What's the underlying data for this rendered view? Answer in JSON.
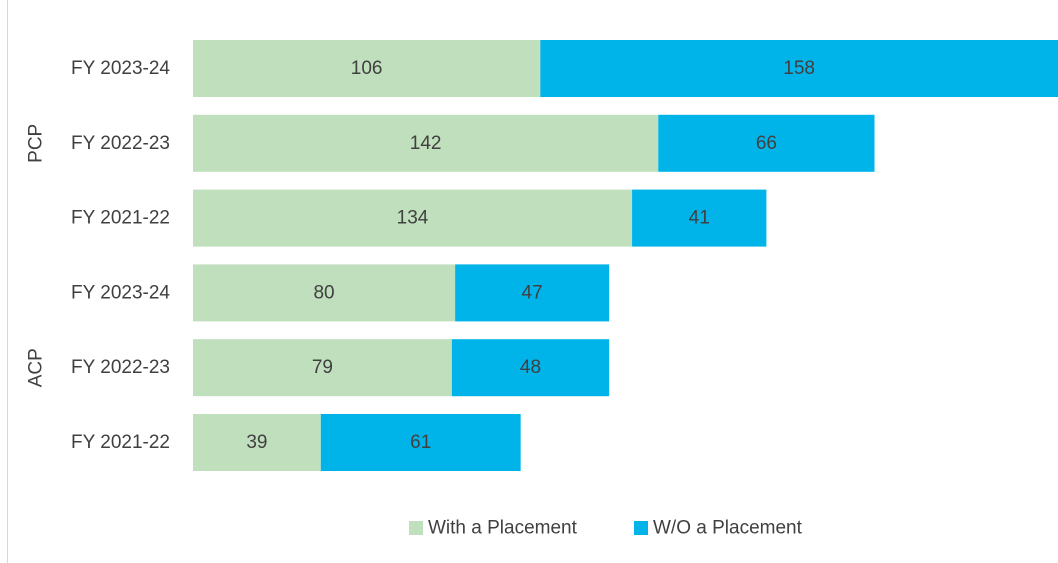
{
  "chart_data": {
    "type": "bar",
    "orientation": "horizontal",
    "stacked": true,
    "title": "",
    "xlabel": "",
    "ylabel": "",
    "groups": [
      {
        "label": "PCP",
        "categories": [
          "FY 2023-24",
          "FY 2022-23",
          "FY 2021-22"
        ],
        "with_placement": [
          106,
          142,
          134
        ],
        "without_placement": [
          158,
          66,
          41
        ]
      },
      {
        "label": "ACP",
        "categories": [
          "FY 2023-24",
          "FY 2022-23",
          "FY 2021-22"
        ],
        "with_placement": [
          80,
          79,
          39
        ],
        "without_placement": [
          47,
          48,
          61
        ]
      }
    ],
    "series": [
      {
        "name": "With a Placement",
        "key": "with_placement",
        "color": "#c0dfbd"
      },
      {
        "name": "W/O a Placement",
        "key": "without_placement",
        "color": "#00b4ea"
      }
    ],
    "xlim": [
      0,
      264
    ],
    "grid": false,
    "legend_position": "bottom"
  }
}
